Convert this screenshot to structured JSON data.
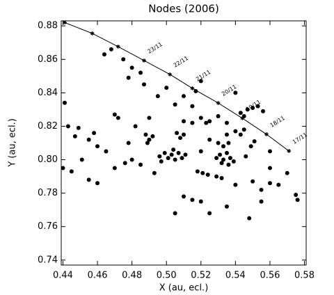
{
  "chart_data": {
    "type": "scatter",
    "title": "Nodes (2006)",
    "x_label": "X (au, ecl.)",
    "y_label": "Y (au, ecl.)",
    "color": "#000000",
    "xlim": [
      0.439,
      0.581
    ],
    "ylim": [
      0.737,
      0.883
    ],
    "xticks": [
      0.44,
      0.46,
      0.48,
      {
        "value": 0.5,
        "label": "0.50"
      },
      0.52,
      0.54,
      0.56,
      0.58
    ],
    "yticks": [
      0.74,
      0.76,
      0.78,
      {
        "value": 0.8,
        "label": "0.80"
      },
      0.82,
      0.84,
      0.86,
      0.88
    ],
    "x": [
      0.488,
      0.49,
      0.492,
      0.489,
      0.506,
      0.508,
      0.51,
      0.496,
      0.499,
      0.501,
      0.503,
      0.505,
      0.507,
      0.509,
      0.511,
      0.497,
      0.504,
      0.518,
      0.521,
      0.524,
      0.529,
      0.531,
      0.533,
      0.535,
      0.537,
      0.532,
      0.536,
      0.539,
      0.533,
      0.536,
      0.529,
      0.532,
      0.54,
      0.543,
      0.549,
      0.551,
      0.546,
      0.493,
      0.543,
      0.547,
      0.55,
      0.553,
      0.556,
      0.545,
      0.441,
      0.443,
      0.447,
      0.449,
      0.455,
      0.46,
      0.458,
      0.451,
      0.44,
      0.445,
      0.455,
      0.46,
      0.465,
      0.47,
      0.472,
      0.464,
      0.468,
      0.475,
      0.48,
      0.478,
      0.485,
      0.487,
      0.495,
      0.5,
      0.505,
      0.51,
      0.515,
      0.517,
      0.52,
      0.523,
      0.525,
      0.51,
      0.515,
      0.49,
      0.482,
      0.478,
      0.48,
      0.485,
      0.476,
      0.47,
      0.51,
      0.515,
      0.52,
      0.505,
      0.525,
      0.535,
      0.54,
      0.55,
      0.555,
      0.56,
      0.565,
      0.57,
      0.575,
      0.576,
      0.56,
      0.555,
      0.548,
      0.53,
      0.525,
      0.53,
      0.535,
      0.545,
      0.56,
      0.52,
      0.54,
      0.52,
      0.535
    ],
    "values": [
      0.815,
      0.812,
      0.814,
      0.81,
      0.816,
      0.813,
      0.815,
      0.802,
      0.804,
      0.801,
      0.803,
      0.8,
      0.804,
      0.801,
      0.803,
      0.799,
      0.806,
      0.793,
      0.792,
      0.791,
      0.801,
      0.803,
      0.8,
      0.804,
      0.801,
      0.798,
      0.797,
      0.799,
      0.808,
      0.81,
      0.79,
      0.789,
      0.817,
      0.815,
      0.808,
      0.811,
      0.802,
      0.792,
      0.828,
      0.83,
      0.831,
      0.832,
      0.829,
      0.826,
      0.834,
      0.82,
      0.814,
      0.819,
      0.812,
      0.808,
      0.816,
      0.8,
      0.795,
      0.793,
      0.788,
      0.786,
      0.805,
      0.827,
      0.825,
      0.863,
      0.866,
      0.86,
      0.855,
      0.849,
      0.852,
      0.845,
      0.838,
      0.843,
      0.833,
      0.838,
      0.832,
      0.841,
      0.825,
      0.822,
      0.823,
      0.823,
      0.822,
      0.825,
      0.82,
      0.81,
      0.8,
      0.797,
      0.798,
      0.795,
      0.778,
      0.776,
      0.775,
      0.768,
      0.768,
      0.772,
      0.785,
      0.787,
      0.782,
      0.786,
      0.785,
      0.792,
      0.779,
      0.776,
      0.795,
      0.775,
      0.765,
      0.81,
      0.812,
      0.826,
      0.822,
      0.818,
      0.805,
      0.805,
      0.84,
      0.847,
      0.815
    ],
    "track": {
      "x": [
        0.441,
        0.457,
        0.472,
        0.487,
        0.502,
        0.515,
        0.53,
        0.544,
        0.558,
        0.571
      ],
      "values": [
        0.882,
        0.8755,
        0.8676,
        0.8593,
        0.851,
        0.8427,
        0.8339,
        0.8248,
        0.8152,
        0.8052
      ],
      "labels": [
        null,
        null,
        null,
        "23/11",
        "22/11",
        "21/11",
        "20/11",
        "19/11",
        "18/11",
        "17/11"
      ]
    }
  }
}
